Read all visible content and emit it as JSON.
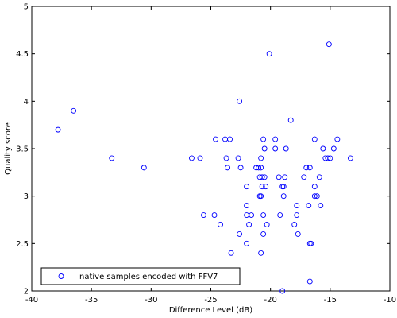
{
  "chart_data": {
    "type": "scatter",
    "title": "",
    "xlabel": "Difference Level (dB)",
    "ylabel": "Quality score",
    "xlim": [
      -40,
      -10
    ],
    "ylim": [
      2,
      5
    ],
    "xticks": [
      -40,
      -35,
      -30,
      -25,
      -20,
      -15,
      -10
    ],
    "yticks": [
      2,
      2.5,
      3,
      3.5,
      4,
      4.5,
      5
    ],
    "xtick_labels": [
      "-40",
      "-35",
      "-30",
      "-25",
      "-20",
      "-15",
      "-10"
    ],
    "ytick_labels": [
      "2",
      "2.5",
      "3",
      "3.5",
      "4",
      "4.5",
      "5"
    ],
    "grid": false,
    "legend_position": "bottom-left",
    "marker": "open-circle",
    "color": "#0000ff",
    "series": [
      {
        "name": "native samples encoded with FFV7",
        "points": [
          [
            -37.8,
            3.7
          ],
          [
            -36.5,
            3.9
          ],
          [
            -33.3,
            3.4
          ],
          [
            -30.6,
            3.3
          ],
          [
            -26.6,
            3.4
          ],
          [
            -25.9,
            3.4
          ],
          [
            -25.6,
            2.8
          ],
          [
            -24.6,
            3.6
          ],
          [
            -24.7,
            2.8
          ],
          [
            -24.2,
            2.7
          ],
          [
            -23.8,
            3.6
          ],
          [
            -23.7,
            3.4
          ],
          [
            -23.6,
            3.3
          ],
          [
            -23.4,
            3.6
          ],
          [
            -23.3,
            2.4
          ],
          [
            -22.7,
            3.4
          ],
          [
            -22.6,
            4.0
          ],
          [
            -22.5,
            3.3
          ],
          [
            -22.6,
            2.6
          ],
          [
            -22.0,
            3.1
          ],
          [
            -22.0,
            2.9
          ],
          [
            -22.0,
            2.8
          ],
          [
            -21.8,
            2.7
          ],
          [
            -22.0,
            2.5
          ],
          [
            -21.6,
            2.8
          ],
          [
            -21.2,
            3.3
          ],
          [
            -21.0,
            3.3
          ],
          [
            -20.8,
            3.3
          ],
          [
            -20.9,
            3.2
          ],
          [
            -20.7,
            3.2
          ],
          [
            -20.9,
            3.0
          ],
          [
            -20.8,
            3.0
          ],
          [
            -20.7,
            3.1
          ],
          [
            -20.6,
            3.6
          ],
          [
            -20.5,
            3.5
          ],
          [
            -20.8,
            3.4
          ],
          [
            -20.5,
            3.2
          ],
          [
            -20.6,
            2.8
          ],
          [
            -20.6,
            2.6
          ],
          [
            -20.8,
            2.4
          ],
          [
            -20.3,
            2.7
          ],
          [
            -20.4,
            3.1
          ],
          [
            -20.1,
            4.5
          ],
          [
            -19.6,
            3.6
          ],
          [
            -19.6,
            3.5
          ],
          [
            -19.3,
            3.2
          ],
          [
            -19.2,
            2.8
          ],
          [
            -19.0,
            3.1
          ],
          [
            -18.9,
            3.1
          ],
          [
            -18.9,
            3.0
          ],
          [
            -18.8,
            3.2
          ],
          [
            -18.7,
            3.5
          ],
          [
            -19.0,
            2.0
          ],
          [
            -18.3,
            3.8
          ],
          [
            -18.0,
            2.7
          ],
          [
            -17.8,
            2.9
          ],
          [
            -17.8,
            2.8
          ],
          [
            -17.7,
            2.6
          ],
          [
            -17.2,
            3.2
          ],
          [
            -17.0,
            3.3
          ],
          [
            -16.8,
            2.9
          ],
          [
            -16.7,
            3.3
          ],
          [
            -16.7,
            2.5
          ],
          [
            -16.6,
            2.5
          ],
          [
            -16.7,
            2.1
          ],
          [
            -16.3,
            3.6
          ],
          [
            -16.3,
            3.1
          ],
          [
            -16.3,
            3.0
          ],
          [
            -16.1,
            3.0
          ],
          [
            -15.9,
            3.2
          ],
          [
            -15.8,
            2.9
          ],
          [
            -15.6,
            3.5
          ],
          [
            -15.4,
            3.4
          ],
          [
            -15.2,
            3.4
          ],
          [
            -15.1,
            4.6
          ],
          [
            -15.0,
            3.4
          ],
          [
            -14.7,
            3.5
          ],
          [
            -14.4,
            3.6
          ],
          [
            -13.3,
            3.4
          ]
        ]
      }
    ]
  }
}
